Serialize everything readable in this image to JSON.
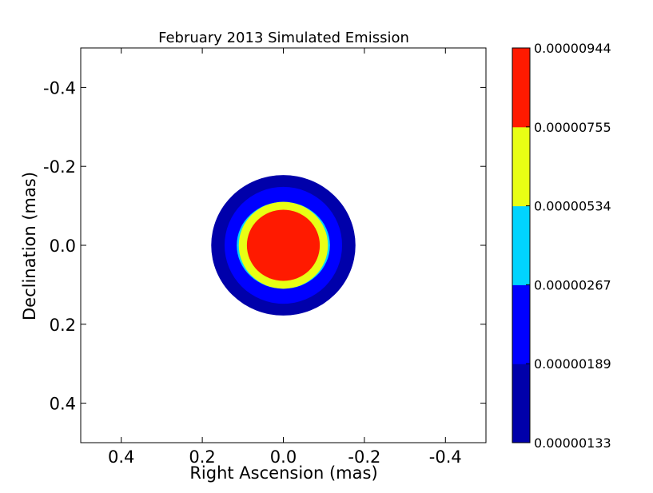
{
  "chart_data": {
    "type": "heatmap",
    "title": "February 2013 Simulated Emission",
    "xlabel": "Right Ascension (mas)",
    "ylabel": "Declination (mas)",
    "xlim": [
      0.5,
      -0.5
    ],
    "ylim": [
      0.5,
      -0.5
    ],
    "x_reversed": true,
    "y_reversed": true,
    "grid": false,
    "x_ticks": [
      0.4,
      0.2,
      0.0,
      -0.2,
      -0.4
    ],
    "x_tick_labels": [
      "0.4",
      "0.2",
      "0.0",
      "-0.2",
      "-0.4"
    ],
    "y_ticks": [
      -0.4,
      -0.2,
      0.0,
      0.2,
      0.4
    ],
    "y_tick_labels": [
      "-0.4",
      "-0.2",
      "0.0",
      "0.2",
      "0.4"
    ],
    "contour_center": [
      0.0,
      0.0
    ],
    "contour_levels": [
      {
        "lower": "0.00000133",
        "upper": "0.00000189",
        "color": "#0000aa",
        "radius_x": 0.178,
        "radius_y": 0.178
      },
      {
        "lower": "0.00000189",
        "upper": "0.00000267",
        "color": "#0000ff",
        "radius_x": 0.145,
        "radius_y": 0.148
      },
      {
        "lower": "0.00000267",
        "upper": "0.00000534",
        "color": "#00d4ff",
        "radius_x": 0.115,
        "radius_y": 0.11
      },
      {
        "lower": "0.00000534",
        "upper": "0.00000755",
        "color": "#e8ff14",
        "radius_x": 0.11,
        "radius_y": 0.11
      },
      {
        "lower": "0.00000755",
        "upper": "0.00000944",
        "color": "#ff1a00",
        "radius_x": 0.09,
        "radius_y": 0.09
      }
    ],
    "colorbar": {
      "tick_labels": [
        "0.00000133",
        "0.00000189",
        "0.00000267",
        "0.00000534",
        "0.00000755",
        "0.00000944"
      ],
      "colors": [
        "#0000aa",
        "#0000ff",
        "#00d4ff",
        "#e8ff14",
        "#ff1a00"
      ]
    }
  }
}
